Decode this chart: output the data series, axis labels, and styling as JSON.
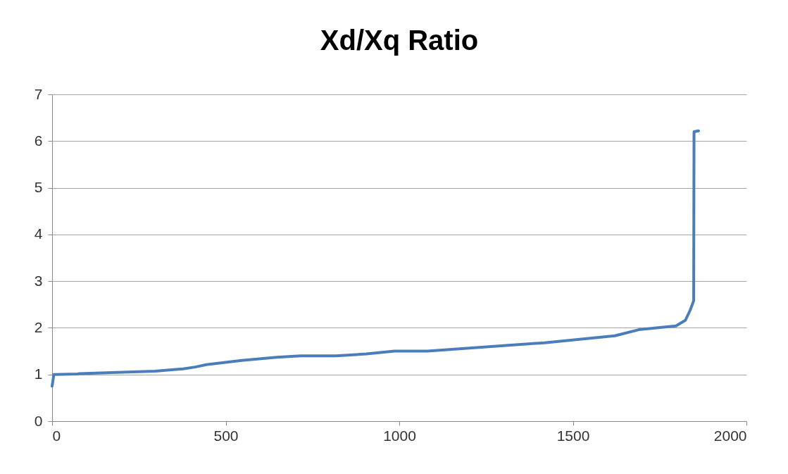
{
  "chart_data": {
    "type": "line",
    "title": "Xd/Xq Ratio",
    "x": [
      0,
      5,
      73,
      79,
      296,
      377,
      412,
      444,
      546,
      647,
      716,
      817,
      905,
      945,
      986,
      1081,
      1418,
      1621,
      1690,
      1797,
      1824,
      1838,
      1848,
      1849,
      1862
    ],
    "series": [
      {
        "color": "#4a7ebb",
        "values": [
          0.75,
          1.0,
          1.01,
          1.02,
          1.07,
          1.12,
          1.16,
          1.21,
          1.3,
          1.37,
          1.4,
          1.4,
          1.44,
          1.47,
          1.5,
          1.5,
          1.68,
          1.83,
          1.96,
          2.04,
          2.16,
          2.38,
          2.58,
          6.2,
          6.22
        ]
      }
    ],
    "xlim": [
      0,
      2000
    ],
    "xticks": [
      0,
      500,
      1000,
      1500,
      2000
    ],
    "ylim": [
      0,
      7
    ],
    "yticks": [
      0,
      1,
      2,
      3,
      4,
      5,
      6,
      7
    ],
    "grid": "y",
    "legend": false,
    "marker": "none",
    "line_style": "solid"
  }
}
